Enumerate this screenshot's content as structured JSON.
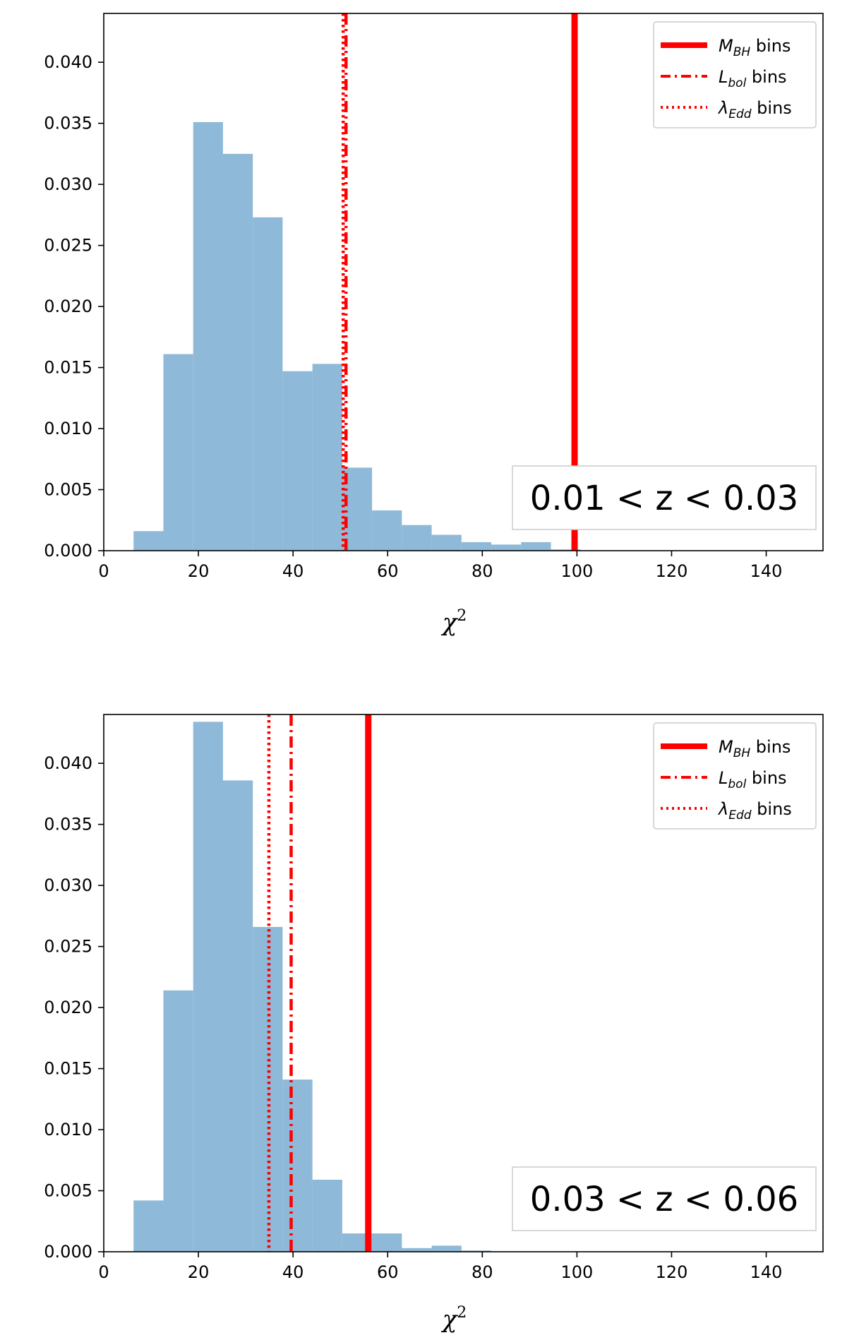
{
  "chart_data": [
    {
      "type": "bar",
      "subtype": "histogram",
      "annotation": "0.01 < z < 0.03",
      "xlabel": "χ²",
      "ylabel": "",
      "xlim": [
        0,
        152
      ],
      "ylim": [
        0,
        0.044
      ],
      "xticks": [
        0,
        20,
        40,
        60,
        80,
        100,
        120,
        140
      ],
      "yticks": [
        0.0,
        0.005,
        0.01,
        0.015,
        0.02,
        0.025,
        0.03,
        0.035,
        0.04
      ],
      "ytick_labels": [
        "0.000",
        "0.005",
        "0.010",
        "0.015",
        "0.020",
        "0.025",
        "0.030",
        "0.035",
        "0.040"
      ],
      "bar_color": "#8fb9d8",
      "bins": [
        {
          "x0": 6.3,
          "x1": 12.6,
          "value": 0.0016
        },
        {
          "x0": 12.6,
          "x1": 18.9,
          "value": 0.0161
        },
        {
          "x0": 18.9,
          "x1": 25.2,
          "value": 0.0351
        },
        {
          "x0": 25.2,
          "x1": 31.5,
          "value": 0.0325
        },
        {
          "x0": 31.5,
          "x1": 37.8,
          "value": 0.0273
        },
        {
          "x0": 37.8,
          "x1": 44.1,
          "value": 0.0147
        },
        {
          "x0": 44.1,
          "x1": 50.4,
          "value": 0.0153
        },
        {
          "x0": 50.4,
          "x1": 56.7,
          "value": 0.0068
        },
        {
          "x0": 56.7,
          "x1": 63.0,
          "value": 0.0033
        },
        {
          "x0": 63.0,
          "x1": 69.3,
          "value": 0.0021
        },
        {
          "x0": 69.3,
          "x1": 75.6,
          "value": 0.0013
        },
        {
          "x0": 75.6,
          "x1": 81.9,
          "value": 0.0007
        },
        {
          "x0": 81.9,
          "x1": 88.2,
          "value": 0.0005
        },
        {
          "x0": 88.2,
          "x1": 94.5,
          "value": 0.0007
        },
        {
          "x0": 94.5,
          "x1": 100.8,
          "value": 0.0001
        }
      ],
      "vlines": [
        {
          "name": "M_BH bins",
          "x": 99.5,
          "style": "solid",
          "color": "#ff0000"
        },
        {
          "name": "L_bol bins",
          "x": 51.2,
          "style": "dashdot",
          "color": "#ff0000"
        },
        {
          "name": "λ_Edd bins",
          "x": 50.6,
          "style": "dotted",
          "color": "#ff0000"
        }
      ]
    },
    {
      "type": "bar",
      "subtype": "histogram",
      "annotation": "0.03 < z < 0.06",
      "xlabel": "χ²",
      "ylabel": "",
      "xlim": [
        0,
        152
      ],
      "ylim": [
        0,
        0.044
      ],
      "xticks": [
        0,
        20,
        40,
        60,
        80,
        100,
        120,
        140
      ],
      "yticks": [
        0.0,
        0.005,
        0.01,
        0.015,
        0.02,
        0.025,
        0.03,
        0.035,
        0.04
      ],
      "ytick_labels": [
        "0.000",
        "0.005",
        "0.010",
        "0.015",
        "0.020",
        "0.025",
        "0.030",
        "0.035",
        "0.040"
      ],
      "bar_color": "#8fb9d8",
      "bins": [
        {
          "x0": 6.3,
          "x1": 12.6,
          "value": 0.0042
        },
        {
          "x0": 12.6,
          "x1": 18.9,
          "value": 0.0214
        },
        {
          "x0": 18.9,
          "x1": 25.2,
          "value": 0.0434
        },
        {
          "x0": 25.2,
          "x1": 31.5,
          "value": 0.0386
        },
        {
          "x0": 31.5,
          "x1": 37.8,
          "value": 0.0266
        },
        {
          "x0": 37.8,
          "x1": 44.1,
          "value": 0.0141
        },
        {
          "x0": 44.1,
          "x1": 50.4,
          "value": 0.0059
        },
        {
          "x0": 50.4,
          "x1": 56.7,
          "value": 0.0015
        },
        {
          "x0": 56.7,
          "x1": 63.0,
          "value": 0.0015
        },
        {
          "x0": 63.0,
          "x1": 69.3,
          "value": 0.0003
        },
        {
          "x0": 69.3,
          "x1": 75.6,
          "value": 0.0005
        },
        {
          "x0": 75.6,
          "x1": 81.9,
          "value": 0.0001
        }
      ],
      "vlines": [
        {
          "name": "M_BH bins",
          "x": 55.9,
          "style": "solid",
          "color": "#ff0000"
        },
        {
          "name": "L_bol bins",
          "x": 39.6,
          "style": "dashdot",
          "color": "#ff0000"
        },
        {
          "name": "λ_Edd bins",
          "x": 34.9,
          "style": "dotted",
          "color": "#ff0000"
        }
      ]
    }
  ],
  "legend": {
    "entries": [
      {
        "symbol": "M",
        "subscript": "BH",
        "suffix": " bins",
        "style": "solid"
      },
      {
        "symbol": "L",
        "subscript": "bol",
        "suffix": " bins",
        "style": "dashdot"
      },
      {
        "symbol": "λ",
        "subscript": "Edd",
        "suffix": " bins",
        "style": "dotted"
      }
    ],
    "placement": "top-right"
  }
}
